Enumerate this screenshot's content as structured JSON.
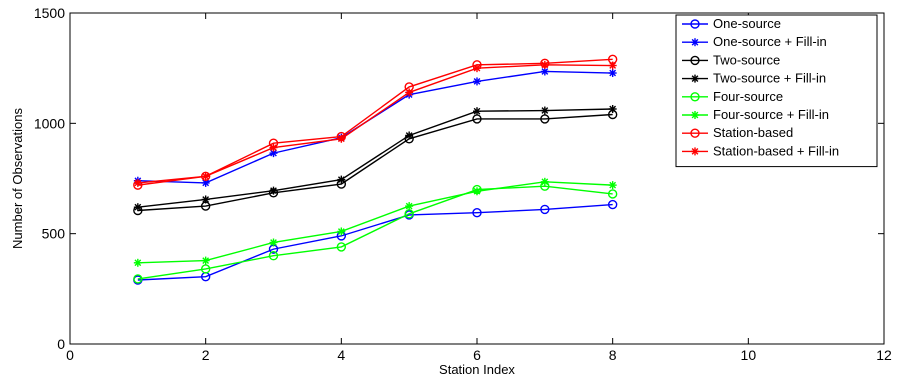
{
  "chart_data": {
    "type": "line",
    "title": "",
    "xlabel": "Station Index",
    "ylabel": "Number of Observations",
    "xlim": [
      0,
      12
    ],
    "ylim": [
      0,
      1500
    ],
    "xticks": [
      0,
      2,
      4,
      6,
      8,
      10,
      12
    ],
    "yticks": [
      0,
      500,
      1000,
      1500
    ],
    "grid": false,
    "legend_position": "top-right",
    "x": [
      1,
      2,
      3,
      4,
      5,
      6,
      7,
      8
    ],
    "series": [
      {
        "name": "One-source",
        "color": "#0000ff",
        "marker": "circle",
        "values": [
          290,
          305,
          430,
          490,
          585,
          595,
          610,
          632
        ]
      },
      {
        "name": "One-source + Fill-in",
        "color": "#0000ff",
        "marker": "star",
        "values": [
          740,
          730,
          865,
          935,
          1130,
          1190,
          1235,
          1228
        ]
      },
      {
        "name": "Two-source",
        "color": "#000000",
        "marker": "circle",
        "values": [
          605,
          625,
          685,
          725,
          930,
          1020,
          1020,
          1040
        ]
      },
      {
        "name": "Two-source + Fill-in",
        "color": "#000000",
        "marker": "star",
        "values": [
          620,
          655,
          695,
          745,
          945,
          1055,
          1058,
          1065
        ]
      },
      {
        "name": "Four-source",
        "color": "#00ff00",
        "marker": "circle",
        "values": [
          295,
          340,
          400,
          440,
          590,
          700,
          715,
          680
        ]
      },
      {
        "name": "Four-source + Fill-in",
        "color": "#00ff00",
        "marker": "star",
        "values": [
          368,
          378,
          460,
          510,
          625,
          692,
          735,
          720
        ]
      },
      {
        "name": "Station-based",
        "color": "#ff0000",
        "marker": "circle",
        "values": [
          720,
          760,
          910,
          940,
          1165,
          1265,
          1272,
          1290
        ]
      },
      {
        "name": "Station-based + Fill-in",
        "color": "#ff0000",
        "marker": "star",
        "values": [
          730,
          760,
          890,
          930,
          1140,
          1250,
          1265,
          1262
        ]
      }
    ]
  }
}
